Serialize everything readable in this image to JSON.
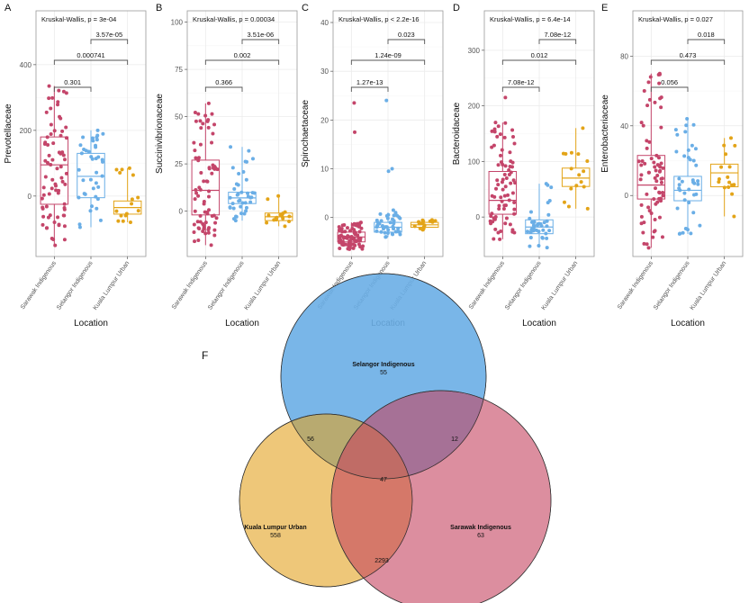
{
  "colors": {
    "Sarawak Indigenous": "#c4456a",
    "Selangor Indigenous": "#6aaee6",
    "Kuala Lumpur Urban": "#e3a418"
  },
  "chart_data": [
    {
      "type": "boxplot",
      "panel": "A",
      "ylabel": "Prevotellaceae",
      "xlabel": "Location",
      "test": "Kruskal-Wallis, p = 3e-04",
      "categories": [
        "Sarawak Indigenous",
        "Selangor Indigenous",
        "Kuala Lumpur Urban"
      ],
      "ylim": [
        -184,
        564
      ],
      "yticks": [
        0,
        200,
        400
      ],
      "boxes": [
        {
          "min": -150,
          "q1": -25,
          "median": 95,
          "q3": 180,
          "max": 335,
          "n": 75
        },
        {
          "min": -95,
          "q1": -5,
          "median": 60,
          "q3": 130,
          "max": 200,
          "n": 40
        },
        {
          "min": -80,
          "q1": -55,
          "median": -35,
          "q3": -15,
          "max": 85,
          "n": 16
        }
      ],
      "comparisons": [
        {
          "groups": [
            0,
            1
          ],
          "p": "0.301"
        },
        {
          "groups": [
            0,
            2
          ],
          "p": "0.000741"
        },
        {
          "groups": [
            1,
            2
          ],
          "p": "3.57e-05"
        }
      ]
    },
    {
      "type": "boxplot",
      "panel": "B",
      "ylabel": "Succinivibrionaceae",
      "xlabel": "Location",
      "test": "Kruskal-Wallis, p = 0.00034",
      "categories": [
        "Sarawak Indigenous",
        "Selangor Indigenous",
        "Kuala Lumpur Urban"
      ],
      "ylim": [
        -24,
        106
      ],
      "yticks": [
        0,
        25,
        50,
        75,
        100
      ],
      "boxes": [
        {
          "min": -18,
          "q1": -2,
          "median": 11,
          "q3": 27,
          "max": 57,
          "n": 75
        },
        {
          "min": -5,
          "q1": 4,
          "median": 7,
          "q3": 10,
          "max": 34,
          "n": 40
        },
        {
          "min": -8,
          "q1": -5,
          "median": -3,
          "q3": -1,
          "max": 8,
          "n": 16
        }
      ],
      "comparisons": [
        {
          "groups": [
            0,
            1
          ],
          "p": "0.366"
        },
        {
          "groups": [
            0,
            2
          ],
          "p": "0.002"
        },
        {
          "groups": [
            1,
            2
          ],
          "p": "3.51e-06"
        }
      ]
    },
    {
      "type": "boxplot",
      "panel": "C",
      "ylabel": "Spirochaetaceae",
      "xlabel": "Location",
      "test": "Kruskal-Wallis, p < 2.2e-16",
      "categories": [
        "Sarawak Indigenous",
        "Selangor Indigenous",
        "Kuala Lumpur Urban"
      ],
      "ylim": [
        -8,
        42.4
      ],
      "yticks": [
        0,
        10,
        20,
        30,
        40
      ],
      "boxes": [
        {
          "min": -6.5,
          "q1": -5,
          "median": -4,
          "q3": -3,
          "max": -1,
          "n": 75,
          "outliers": [
            23.5,
            17.5
          ]
        },
        {
          "min": -4,
          "q1": -3,
          "median": -2,
          "q3": -1,
          "max": 1,
          "n": 40,
          "outliers": [
            24,
            10,
            9.5,
            1.5
          ]
        },
        {
          "min": -2.5,
          "q1": -2,
          "median": -1.5,
          "q3": -1,
          "max": -0.5,
          "n": 16
        }
      ],
      "comparisons": [
        {
          "groups": [
            0,
            1
          ],
          "p": "1.27e-13"
        },
        {
          "groups": [
            0,
            2
          ],
          "p": "1.24e-09"
        },
        {
          "groups": [
            1,
            2
          ],
          "p": "0.023"
        }
      ]
    },
    {
      "type": "boxplot",
      "panel": "D",
      "ylabel": "Bacteroidaceae",
      "xlabel": "Location",
      "test": "Kruskal-Wallis, p = 6.4e-14",
      "categories": [
        "Sarawak Indigenous",
        "Selangor Indigenous",
        "Kuala Lumpur Urban"
      ],
      "ylim": [
        -71,
        371
      ],
      "yticks": [
        0,
        100,
        200,
        300
      ],
      "boxes": [
        {
          "min": -40,
          "q1": 5,
          "median": 30,
          "q3": 82,
          "max": 170,
          "n": 75,
          "outliers": [
            215
          ]
        },
        {
          "min": -55,
          "q1": -30,
          "median": -18,
          "q3": -5,
          "max": 60,
          "n": 40
        },
        {
          "min": 15,
          "q1": 55,
          "median": 70,
          "q3": 88,
          "max": 160,
          "n": 16
        }
      ],
      "comparisons": [
        {
          "groups": [
            0,
            1
          ],
          "p": "7.08e-12"
        },
        {
          "groups": [
            0,
            2
          ],
          "p": "0.012"
        },
        {
          "groups": [
            1,
            2
          ],
          "p": "7.08e-12"
        }
      ]
    },
    {
      "type": "boxplot",
      "panel": "E",
      "ylabel": "Enterobacteriaceae",
      "xlabel": "Location",
      "test": "Kruskal-Wallis, p = 0.027",
      "categories": [
        "Sarawak Indigenous",
        "Selangor Indigenous",
        "Kuala Lumpur Urban"
      ],
      "ylim": [
        -35,
        106
      ],
      "yticks": [
        0,
        40,
        80
      ],
      "boxes": [
        {
          "min": -30,
          "q1": -2,
          "median": 6,
          "q3": 23,
          "max": 70,
          "n": 75
        },
        {
          "min": -22,
          "q1": -3,
          "median": 3,
          "q3": 11,
          "max": 44,
          "n": 40
        },
        {
          "min": -12,
          "q1": 5,
          "median": 13,
          "q3": 18,
          "max": 33,
          "n": 16
        }
      ],
      "comparisons": [
        {
          "groups": [
            0,
            1
          ],
          "p": "0.056"
        },
        {
          "groups": [
            0,
            2
          ],
          "p": "0.473"
        },
        {
          "groups": [
            1,
            2
          ],
          "p": "0.018"
        }
      ]
    }
  ],
  "venn": {
    "panel": "F",
    "sets": [
      {
        "name": "Selangor Indigenous",
        "unique": "55",
        "color": "#6aaee6"
      },
      {
        "name": "Kuala Lumpur Urban",
        "unique": "558",
        "color": "#e3a11f"
      },
      {
        "name": "Sarawak Indigenous",
        "unique": "63",
        "color": "#c4435f"
      }
    ],
    "overlaps": {
      "selangor_kl": "56",
      "selangor_sarawak": "12",
      "kl_sarawak": "2293",
      "all": "47"
    }
  }
}
